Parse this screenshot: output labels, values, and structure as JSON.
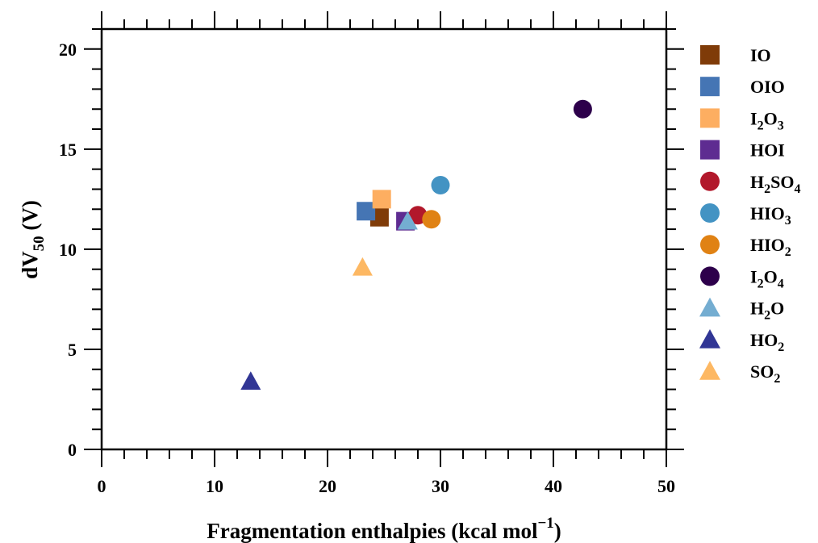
{
  "chart_data": {
    "type": "scatter",
    "xlabel_main": "Fragmentation enthalpies (kcal mol",
    "xlabel_sup": "−1",
    "xlabel_end": ")",
    "ylabel_main": "dV",
    "ylabel_sub": "50",
    "ylabel_end": " (V)",
    "xlim": [
      0,
      50
    ],
    "ylim": [
      0,
      21
    ],
    "xticks": [
      "0",
      "10",
      "20",
      "30",
      "40",
      "50"
    ],
    "yticks": [
      "0",
      "5",
      "10",
      "15",
      "20"
    ],
    "xtick_values": [
      0,
      10,
      20,
      30,
      40,
      50
    ],
    "ytick_values": [
      0,
      5,
      10,
      15,
      20
    ],
    "grid": false,
    "legend_position": "right",
    "series": [
      {
        "name": "IO",
        "name_parts": [
          [
            "IO",
            ""
          ]
        ],
        "marker": "square",
        "color": "#7f3b08",
        "x": 24.6,
        "y": 11.6
      },
      {
        "name": "OIO",
        "name_parts": [
          [
            "OIO",
            ""
          ]
        ],
        "marker": "square",
        "color": "#4575b4",
        "x": 23.4,
        "y": 11.9
      },
      {
        "name": "I2O3",
        "name_parts": [
          [
            "I",
            "2"
          ],
          [
            "O",
            "3"
          ]
        ],
        "marker": "square",
        "color": "#fdae61",
        "x": 24.8,
        "y": 12.5
      },
      {
        "name": "HOI",
        "name_parts": [
          [
            "HOI",
            ""
          ]
        ],
        "marker": "square",
        "color": "#5e2c91",
        "x": 26.9,
        "y": 11.4
      },
      {
        "name": "H2SO4",
        "name_parts": [
          [
            "H",
            "2"
          ],
          [
            "SO",
            "4"
          ]
        ],
        "marker": "circle",
        "color": "#b2182b",
        "x": 28.0,
        "y": 11.7
      },
      {
        "name": "HIO3",
        "name_parts": [
          [
            "HIO",
            "3"
          ]
        ],
        "marker": "circle",
        "color": "#4393c3",
        "x": 30.0,
        "y": 13.2
      },
      {
        "name": "HIO2",
        "name_parts": [
          [
            "HIO",
            "2"
          ]
        ],
        "marker": "circle",
        "color": "#e08214",
        "x": 29.2,
        "y": 11.5
      },
      {
        "name": "I2O4",
        "name_parts": [
          [
            "I",
            "2"
          ],
          [
            "O",
            "4"
          ]
        ],
        "marker": "circle",
        "color": "#2d004b",
        "x": 42.6,
        "y": 17.0
      },
      {
        "name": "H2O",
        "name_parts": [
          [
            "H",
            "2"
          ],
          [
            "O",
            ""
          ]
        ],
        "marker": "triangle",
        "color": "#74add1",
        "x": 27.1,
        "y": 11.4
      },
      {
        "name": "HO2",
        "name_parts": [
          [
            "HO",
            "2"
          ]
        ],
        "marker": "triangle",
        "color": "#313695",
        "x": 13.2,
        "y": 3.4
      },
      {
        "name": "SO2",
        "name_parts": [
          [
            "SO",
            "2"
          ]
        ],
        "marker": "triangle",
        "color": "#fdb863",
        "x": 23.1,
        "y": 9.1
      }
    ]
  }
}
